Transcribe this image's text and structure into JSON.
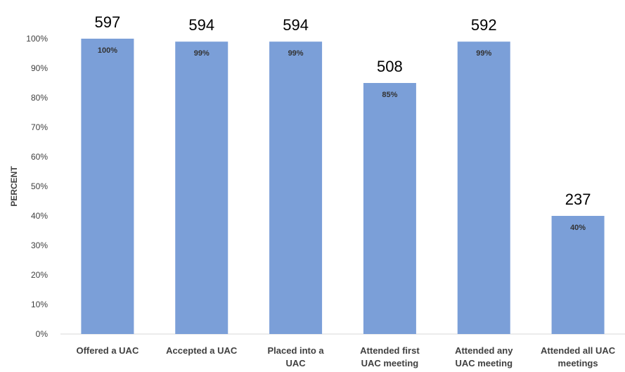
{
  "chart_data": {
    "type": "bar",
    "title": "",
    "xlabel": "",
    "ylabel": "PERCENT",
    "ylim": [
      0,
      100
    ],
    "yticks": [
      "0%",
      "10%",
      "20%",
      "30%",
      "40%",
      "50%",
      "60%",
      "70%",
      "80%",
      "90%",
      "100%"
    ],
    "grid": false,
    "legend": "none",
    "bar_color": "#7b9fd8",
    "categories": [
      [
        "Offered a UAC"
      ],
      [
        "Accepted a UAC"
      ],
      [
        "Placed into a",
        "UAC"
      ],
      [
        "Attended first",
        "UAC meeting"
      ],
      [
        "Attended any",
        "UAC meeting"
      ],
      [
        "Attended all UAC",
        "meetings"
      ]
    ],
    "values": [
      100,
      99,
      99,
      85,
      99,
      40
    ],
    "value_labels": [
      "100%",
      "99%",
      "99%",
      "85%",
      "99%",
      "40%"
    ],
    "counts": [
      "597",
      "594",
      "594",
      "508",
      "592",
      "237"
    ]
  }
}
